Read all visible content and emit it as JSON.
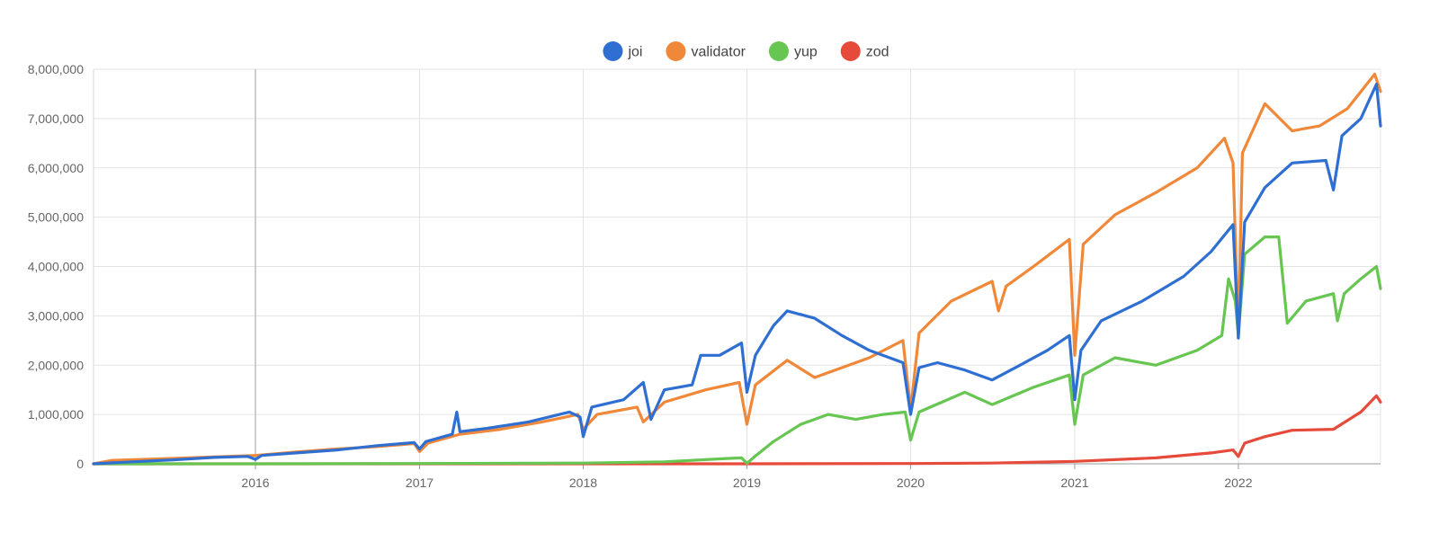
{
  "chart_data": {
    "type": "line",
    "title": "",
    "xlabel": "",
    "ylabel": "",
    "x_range": [
      "2015-01-05",
      "2022-11-14"
    ],
    "ylim": [
      0,
      8000000
    ],
    "x_ticks": [
      {
        "date": "2016-01-01",
        "label": "2016"
      },
      {
        "date": "2017-01-01",
        "label": "2017"
      },
      {
        "date": "2018-01-01",
        "label": "2018"
      },
      {
        "date": "2019-01-01",
        "label": "2019"
      },
      {
        "date": "2020-01-01",
        "label": "2020"
      },
      {
        "date": "2021-01-01",
        "label": "2021"
      },
      {
        "date": "2022-01-01",
        "label": "2022"
      }
    ],
    "y_ticks": [
      {
        "value": 0,
        "label": "0"
      },
      {
        "value": 1000000,
        "label": "1,000,000"
      },
      {
        "value": 2000000,
        "label": "2,000,000"
      },
      {
        "value": 3000000,
        "label": "3,000,000"
      },
      {
        "value": 4000000,
        "label": "4,000,000"
      },
      {
        "value": 5000000,
        "label": "5,000,000"
      },
      {
        "value": 6000000,
        "label": "6,000,000"
      },
      {
        "value": 7000000,
        "label": "7,000,000"
      },
      {
        "value": 8000000,
        "label": "8,000,000"
      }
    ],
    "grid": true,
    "legend_position": "top-center",
    "series": [
      {
        "name": "joi",
        "color": "#2f6fd1",
        "points": [
          [
            "2015-01-05",
            0
          ],
          [
            "2015-04-01",
            40000
          ],
          [
            "2015-07-01",
            80000
          ],
          [
            "2015-10-01",
            130000
          ],
          [
            "2015-12-15",
            150000
          ],
          [
            "2016-01-01",
            90000
          ],
          [
            "2016-01-15",
            170000
          ],
          [
            "2016-04-01",
            220000
          ],
          [
            "2016-07-01",
            280000
          ],
          [
            "2016-10-01",
            370000
          ],
          [
            "2016-12-20",
            430000
          ],
          [
            "2017-01-01",
            300000
          ],
          [
            "2017-01-15",
            450000
          ],
          [
            "2017-03-15",
            600000
          ],
          [
            "2017-03-25",
            1050000
          ],
          [
            "2017-04-01",
            650000
          ],
          [
            "2017-06-01",
            720000
          ],
          [
            "2017-09-01",
            850000
          ],
          [
            "2017-12-01",
            1050000
          ],
          [
            "2017-12-25",
            950000
          ],
          [
            "2018-01-01",
            550000
          ],
          [
            "2018-01-20",
            1150000
          ],
          [
            "2018-04-01",
            1300000
          ],
          [
            "2018-05-15",
            1650000
          ],
          [
            "2018-06-01",
            900000
          ],
          [
            "2018-07-01",
            1500000
          ],
          [
            "2018-09-01",
            1600000
          ],
          [
            "2018-09-20",
            2200000
          ],
          [
            "2018-11-01",
            2200000
          ],
          [
            "2018-12-20",
            2450000
          ],
          [
            "2019-01-01",
            1450000
          ],
          [
            "2019-01-20",
            2200000
          ],
          [
            "2019-03-01",
            2800000
          ],
          [
            "2019-04-01",
            3100000
          ],
          [
            "2019-06-01",
            2950000
          ],
          [
            "2019-08-01",
            2600000
          ],
          [
            "2019-10-01",
            2300000
          ],
          [
            "2019-12-15",
            2050000
          ],
          [
            "2020-01-01",
            1000000
          ],
          [
            "2020-01-20",
            1950000
          ],
          [
            "2020-03-01",
            2050000
          ],
          [
            "2020-05-01",
            1900000
          ],
          [
            "2020-07-01",
            1700000
          ],
          [
            "2020-09-01",
            2000000
          ],
          [
            "2020-11-01",
            2300000
          ],
          [
            "2020-12-20",
            2600000
          ],
          [
            "2021-01-01",
            1300000
          ],
          [
            "2021-01-15",
            2300000
          ],
          [
            "2021-03-01",
            2900000
          ],
          [
            "2021-06-01",
            3300000
          ],
          [
            "2021-09-01",
            3800000
          ],
          [
            "2021-11-01",
            4300000
          ],
          [
            "2021-12-20",
            4850000
          ],
          [
            "2022-01-01",
            2550000
          ],
          [
            "2022-01-15",
            4900000
          ],
          [
            "2022-03-01",
            5600000
          ],
          [
            "2022-05-01",
            6100000
          ],
          [
            "2022-07-15",
            6150000
          ],
          [
            "2022-08-01",
            5550000
          ],
          [
            "2022-08-20",
            6650000
          ],
          [
            "2022-10-01",
            7000000
          ],
          [
            "2022-11-05",
            7700000
          ],
          [
            "2022-11-14",
            6850000
          ]
        ]
      },
      {
        "name": "validator",
        "color": "#f0883a",
        "points": [
          [
            "2015-01-05",
            0
          ],
          [
            "2015-02-15",
            70000
          ],
          [
            "2015-06-01",
            100000
          ],
          [
            "2015-10-01",
            140000
          ],
          [
            "2016-01-01",
            170000
          ],
          [
            "2016-04-01",
            240000
          ],
          [
            "2016-07-01",
            300000
          ],
          [
            "2016-10-01",
            350000
          ],
          [
            "2016-12-20",
            410000
          ],
          [
            "2017-01-01",
            250000
          ],
          [
            "2017-01-20",
            420000
          ],
          [
            "2017-04-01",
            600000
          ],
          [
            "2017-07-01",
            700000
          ],
          [
            "2017-10-01",
            850000
          ],
          [
            "2017-12-20",
            1000000
          ],
          [
            "2018-01-01",
            700000
          ],
          [
            "2018-02-01",
            1000000
          ],
          [
            "2018-05-01",
            1150000
          ],
          [
            "2018-05-15",
            850000
          ],
          [
            "2018-07-01",
            1250000
          ],
          [
            "2018-10-01",
            1500000
          ],
          [
            "2018-12-15",
            1650000
          ],
          [
            "2019-01-01",
            800000
          ],
          [
            "2019-01-20",
            1600000
          ],
          [
            "2019-04-01",
            2100000
          ],
          [
            "2019-06-01",
            1750000
          ],
          [
            "2019-08-01",
            1950000
          ],
          [
            "2019-10-01",
            2150000
          ],
          [
            "2019-12-15",
            2500000
          ],
          [
            "2020-01-01",
            1100000
          ],
          [
            "2020-01-20",
            2650000
          ],
          [
            "2020-04-01",
            3300000
          ],
          [
            "2020-07-01",
            3700000
          ],
          [
            "2020-07-15",
            3100000
          ],
          [
            "2020-08-01",
            3600000
          ],
          [
            "2020-10-01",
            4000000
          ],
          [
            "2020-12-20",
            4550000
          ],
          [
            "2021-01-01",
            2200000
          ],
          [
            "2021-01-20",
            4450000
          ],
          [
            "2021-04-01",
            5050000
          ],
          [
            "2021-07-01",
            5500000
          ],
          [
            "2021-10-01",
            6000000
          ],
          [
            "2021-12-01",
            6600000
          ],
          [
            "2021-12-20",
            6100000
          ],
          [
            "2022-01-01",
            2550000
          ],
          [
            "2022-01-10",
            6300000
          ],
          [
            "2022-03-01",
            7300000
          ],
          [
            "2022-05-01",
            6750000
          ],
          [
            "2022-07-01",
            6850000
          ],
          [
            "2022-09-01",
            7200000
          ],
          [
            "2022-11-01",
            7900000
          ],
          [
            "2022-11-14",
            7550000
          ]
        ]
      },
      {
        "name": "yup",
        "color": "#66c651",
        "points": [
          [
            "2015-01-05",
            0
          ],
          [
            "2016-01-01",
            0
          ],
          [
            "2017-01-01",
            5000
          ],
          [
            "2018-01-01",
            15000
          ],
          [
            "2018-07-01",
            40000
          ],
          [
            "2018-11-01",
            100000
          ],
          [
            "2018-12-20",
            120000
          ],
          [
            "2019-01-01",
            10000
          ],
          [
            "2019-01-15",
            120000
          ],
          [
            "2019-03-01",
            450000
          ],
          [
            "2019-05-01",
            800000
          ],
          [
            "2019-07-01",
            1000000
          ],
          [
            "2019-09-01",
            900000
          ],
          [
            "2019-11-01",
            1000000
          ],
          [
            "2019-12-20",
            1050000
          ],
          [
            "2020-01-01",
            480000
          ],
          [
            "2020-01-20",
            1050000
          ],
          [
            "2020-05-01",
            1450000
          ],
          [
            "2020-07-01",
            1200000
          ],
          [
            "2020-10-01",
            1550000
          ],
          [
            "2020-12-20",
            1800000
          ],
          [
            "2021-01-01",
            800000
          ],
          [
            "2021-01-20",
            1800000
          ],
          [
            "2021-04-01",
            2150000
          ],
          [
            "2021-07-01",
            2000000
          ],
          [
            "2021-10-01",
            2300000
          ],
          [
            "2021-11-25",
            2600000
          ],
          [
            "2021-12-10",
            3750000
          ],
          [
            "2021-12-25",
            3300000
          ],
          [
            "2022-01-01",
            2600000
          ],
          [
            "2022-01-15",
            4250000
          ],
          [
            "2022-03-01",
            4600000
          ],
          [
            "2022-04-01",
            4600000
          ],
          [
            "2022-04-20",
            2850000
          ],
          [
            "2022-06-01",
            3300000
          ],
          [
            "2022-08-01",
            3450000
          ],
          [
            "2022-08-10",
            2900000
          ],
          [
            "2022-08-25",
            3450000
          ],
          [
            "2022-10-01",
            3750000
          ],
          [
            "2022-11-05",
            4000000
          ],
          [
            "2022-11-14",
            3550000
          ]
        ]
      },
      {
        "name": "zod",
        "color": "#e64a3b",
        "points": [
          [
            "2015-01-05",
            0
          ],
          [
            "2019-01-01",
            0
          ],
          [
            "2020-01-01",
            5000
          ],
          [
            "2020-07-01",
            15000
          ],
          [
            "2021-01-01",
            50000
          ],
          [
            "2021-07-01",
            120000
          ],
          [
            "2021-11-01",
            220000
          ],
          [
            "2021-12-20",
            280000
          ],
          [
            "2022-01-01",
            150000
          ],
          [
            "2022-01-15",
            420000
          ],
          [
            "2022-03-01",
            550000
          ],
          [
            "2022-05-01",
            680000
          ],
          [
            "2022-08-01",
            700000
          ],
          [
            "2022-10-01",
            1050000
          ],
          [
            "2022-11-05",
            1380000
          ],
          [
            "2022-11-14",
            1250000
          ]
        ]
      }
    ]
  }
}
